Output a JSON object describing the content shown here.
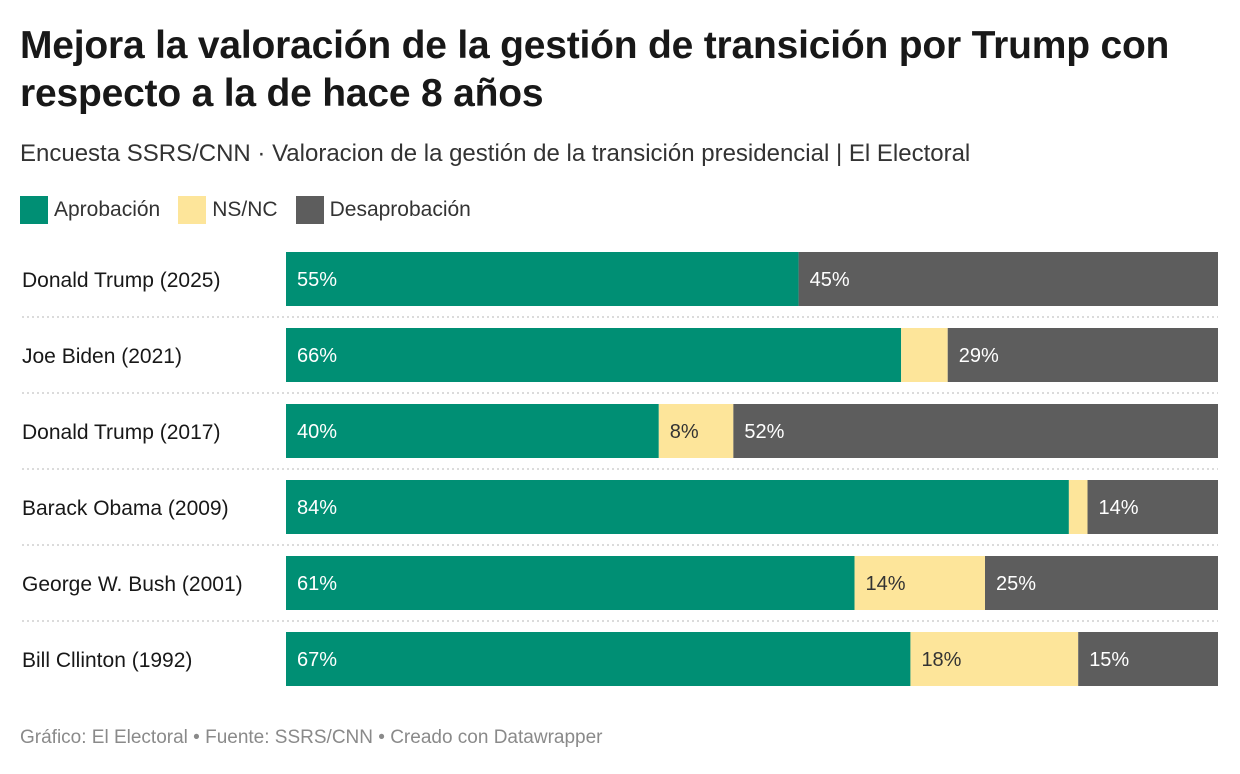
{
  "title": "Mejora la valoración de la gestión de transición por Trump con respecto a la de hace 8 años",
  "subtitle": "Encuesta SSRS/CNN · Valoracion de la gestión de la transición presidencial | El Electoral",
  "legend": [
    {
      "label": "Aprobación",
      "color": "#008f74"
    },
    {
      "label": "NS/NC",
      "color": "#fde59a"
    },
    {
      "label": "Desaprobación",
      "color": "#5d5d5d"
    }
  ],
  "footer": "Gráfico: El Electoral • Fuente: SSRS/CNN • Creado con Datawrapper",
  "chart_data": {
    "type": "bar",
    "stacked": true,
    "orientation": "horizontal",
    "categories": [
      "Donald Trump (2025)",
      "Joe Biden (2021)",
      "Donald Trump (2017)",
      "Barack Obama (2009)",
      "George W. Bush (2001)",
      "Bill Cllinton (1992)"
    ],
    "series": [
      {
        "name": "Aprobación",
        "color": "#008f74",
        "values": [
          55,
          66,
          40,
          84,
          61,
          67
        ],
        "labels": [
          "55%",
          "66%",
          "40%",
          "84%",
          "61%",
          "67%"
        ]
      },
      {
        "name": "NS/NC",
        "color": "#fde59a",
        "values": [
          0,
          5,
          8,
          2,
          14,
          18
        ],
        "labels": [
          "",
          "",
          "8%",
          "",
          "14%",
          "18%"
        ]
      },
      {
        "name": "Desaprobación",
        "color": "#5d5d5d",
        "values": [
          45,
          29,
          52,
          14,
          25,
          15
        ],
        "labels": [
          "45%",
          "29%",
          "52%",
          "14%",
          "25%",
          "15%"
        ]
      }
    ],
    "xlim": [
      0,
      100
    ],
    "grid": false,
    "legend_position": "top-left"
  }
}
